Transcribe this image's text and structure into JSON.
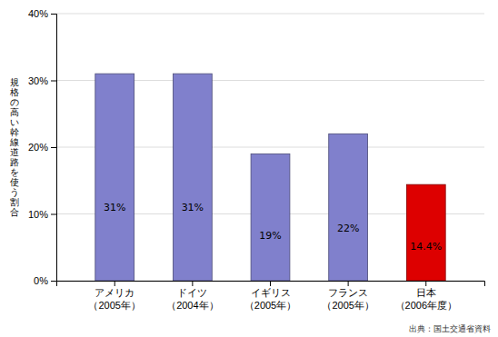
{
  "chart_data": {
    "type": "bar",
    "categories": [
      "アメリカ\n（2005年）",
      "ドイツ\n（2004年）",
      "イギリス\n（2005年）",
      "フランス\n（2005年）",
      "日本\n（2006年度）"
    ],
    "values": [
      31,
      31,
      19,
      22,
      14.4
    ],
    "value_labels": [
      "31%",
      "31%",
      "19%",
      "22%",
      "14.4%"
    ],
    "data_labels": true,
    "colors": [
      "#8080cc",
      "#8080cc",
      "#8080cc",
      "#8080cc",
      "#dd0000"
    ],
    "ylim": [
      0,
      40
    ],
    "yticks": [
      {
        "value": 0,
        "label": "0%"
      },
      {
        "value": 10,
        "label": "10%"
      },
      {
        "value": 20,
        "label": "20%"
      },
      {
        "value": 30,
        "label": "30%"
      },
      {
        "value": 40,
        "label": "40%"
      }
    ],
    "y_label": "規\n格\nの\n高\nい\n幹\n線\n道\n路\nを\n使\nう\n割\n合",
    "annotations": [
      "出典：国土交通省資料"
    ],
    "grid": true
  }
}
